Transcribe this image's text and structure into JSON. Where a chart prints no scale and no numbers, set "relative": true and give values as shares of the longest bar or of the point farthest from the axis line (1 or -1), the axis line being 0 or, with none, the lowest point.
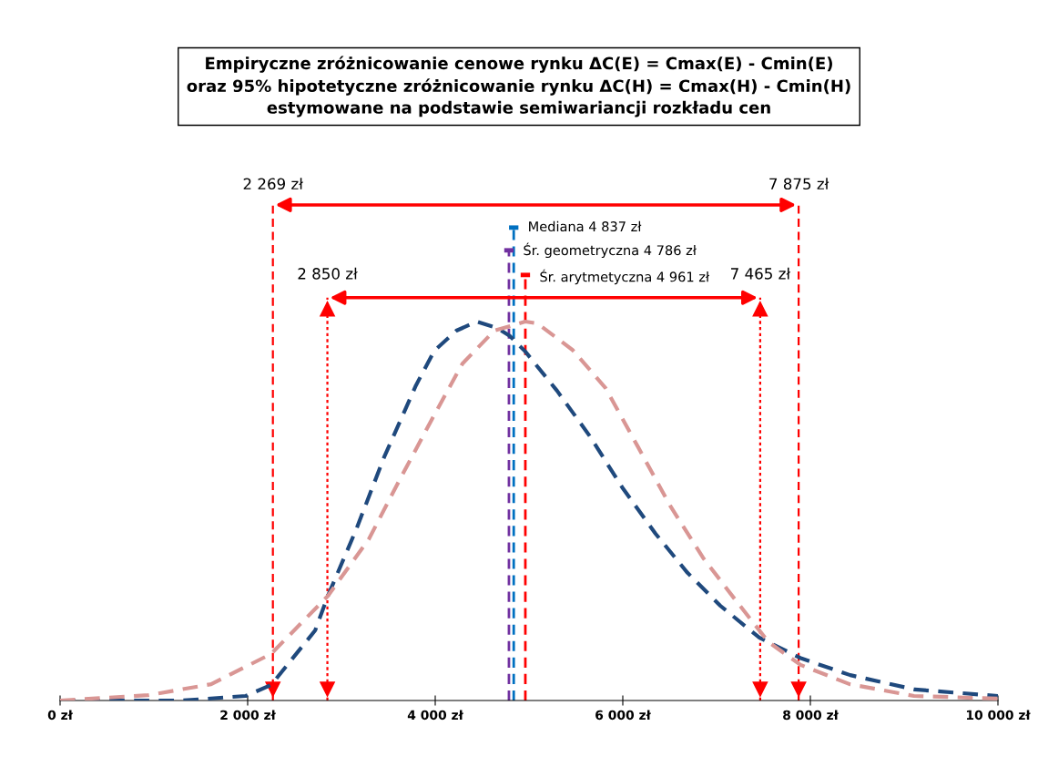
{
  "chart_data": {
    "type": "line",
    "title": "Empiryczne zróżnicowanie cenowe rynku ΔC(E) = Cmax(E) - Cmin(E)\noraz 95% hipotetyczne zróżnicowanie rynku ΔC(H) = Cmax(H) - Cmin(H)\nestymowane na podstawie semiwariancji rozkładu cen",
    "relative": true,
    "line_style": "dashed",
    "marker": "none",
    "grid": false,
    "tick_labels": "x",
    "xlim": [
      0,
      10000
    ],
    "xticks": [
      {
        "value": 0,
        "label": "0 zł"
      },
      {
        "value": 2000,
        "label": "2 000 zł"
      },
      {
        "value": 4000,
        "label": "4 000 zł"
      },
      {
        "value": 6000,
        "label": "6 000 zł"
      },
      {
        "value": 8000,
        "label": "8 000 zł"
      },
      {
        "value": 10000,
        "label": "10 000 zł"
      }
    ],
    "series": [
      {
        "color": "#1f497d",
        "x": [
          0,
          1300,
          1980,
          2250,
          2720,
          2855,
          3155,
          3455,
          3795,
          3990,
          4225,
          4445,
          4660,
          4795,
          4960,
          5300,
          5650,
          6000,
          6350,
          6690,
          7040,
          7455,
          7905,
          8425,
          9115,
          10000
        ],
        "values": [
          0,
          0,
          0.012,
          0.041,
          0.185,
          0.276,
          0.45,
          0.642,
          0.832,
          0.923,
          0.976,
          1,
          0.983,
          0.962,
          0.921,
          0.817,
          0.697,
          0.56,
          0.44,
          0.337,
          0.25,
          0.166,
          0.111,
          0.067,
          0.029,
          0.012
        ]
      },
      {
        "color": "#d99694",
        "x": [
          0,
          940,
          1610,
          2250,
          2855,
          3290,
          3620,
          3960,
          4290,
          4630,
          4960,
          5090,
          5465,
          5815,
          6165,
          6505,
          6855,
          7205,
          7555,
          7895,
          8420,
          9105,
          10000
        ],
        "values": [
          0,
          0.014,
          0.043,
          0.123,
          0.276,
          0.425,
          0.582,
          0.74,
          0.889,
          0.976,
          1,
          0.995,
          0.925,
          0.825,
          0.668,
          0.514,
          0.377,
          0.264,
          0.154,
          0.094,
          0.043,
          0.012,
          0.005
        ]
      }
    ],
    "ref_lines": [
      {
        "axis": "x",
        "value": 2269,
        "label": "2 269 zł",
        "color": "#ff0000",
        "line_style": "dashed"
      },
      {
        "axis": "x",
        "value": 7875,
        "label": "7 875 zł",
        "color": "#ff0000",
        "line_style": "dashed"
      },
      {
        "axis": "x",
        "value": 2850,
        "label": "2 850 zł",
        "color": "#ff0000",
        "line_style": "dotted"
      },
      {
        "axis": "x",
        "value": 7465,
        "label": "7 465 zł",
        "color": "#ff0000",
        "line_style": "dotted"
      },
      {
        "axis": "x",
        "value": 4837,
        "label": "Mediana 4 837 zł",
        "color": "#0070c0",
        "line_style": "dashed"
      },
      {
        "axis": "x",
        "value": 4786,
        "label": "Śr. geometryczna 4 786 zł",
        "color": "#7030a0",
        "line_style": "dashed"
      },
      {
        "axis": "x",
        "value": 4961,
        "label": "Śr. arytmetyczna 4 961 zł",
        "color": "#ff0000",
        "line_style": "dashed"
      }
    ]
  }
}
